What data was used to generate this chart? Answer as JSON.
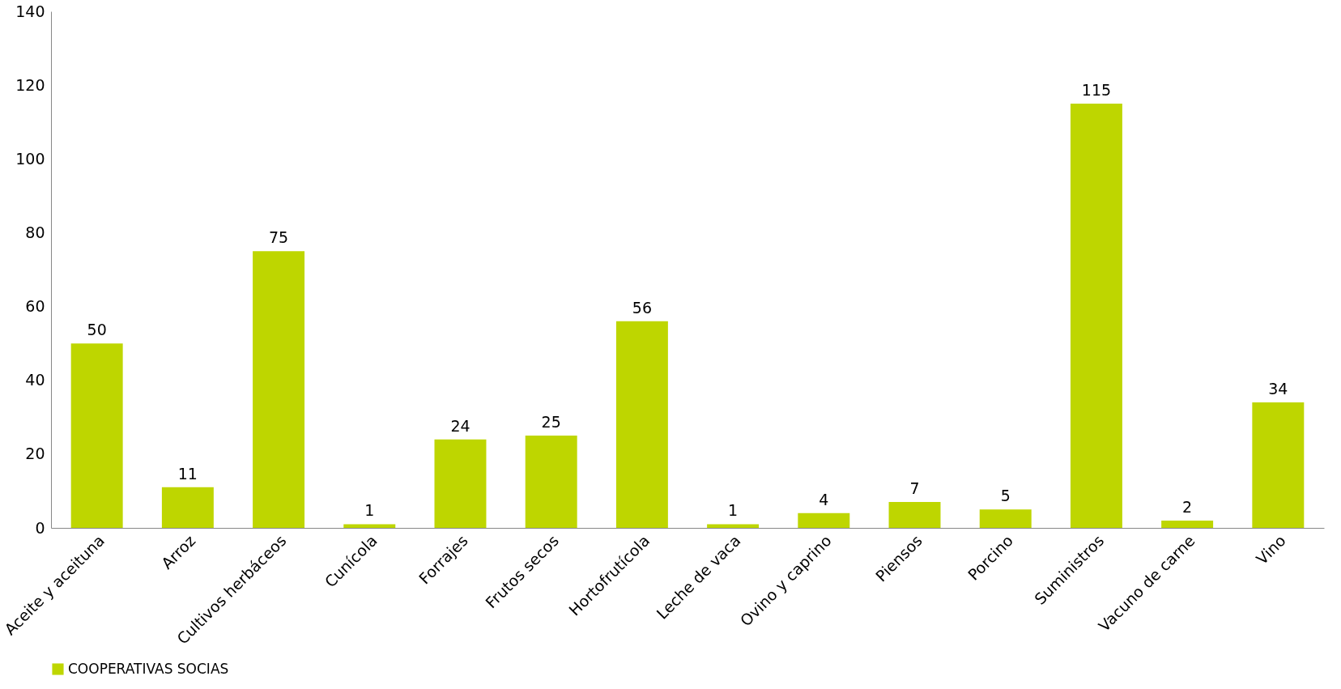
{
  "chart_data": {
    "type": "bar",
    "categories": [
      "Aceite y aceituna",
      "Arroz",
      "Cultivos herbáceos",
      "Cunícola",
      "Forrajes",
      "Frutos secos",
      "Hortofrutícola",
      "Leche de vaca",
      "Ovino y caprino",
      "Piensos",
      "Porcino",
      "Suministros",
      "Vacuno de carne",
      "Vino"
    ],
    "series": [
      {
        "name": "COOPERATIVAS SOCIAS",
        "color": "#bed600",
        "values": [
          50,
          11,
          75,
          1,
          24,
          25,
          56,
          1,
          4,
          7,
          5,
          115,
          2,
          34
        ]
      }
    ],
    "ylim": [
      0,
      140
    ],
    "yticks": [
      0,
      20,
      40,
      60,
      80,
      100,
      120,
      140
    ],
    "grid": false,
    "legend": "bottom",
    "data_labels": true
  }
}
